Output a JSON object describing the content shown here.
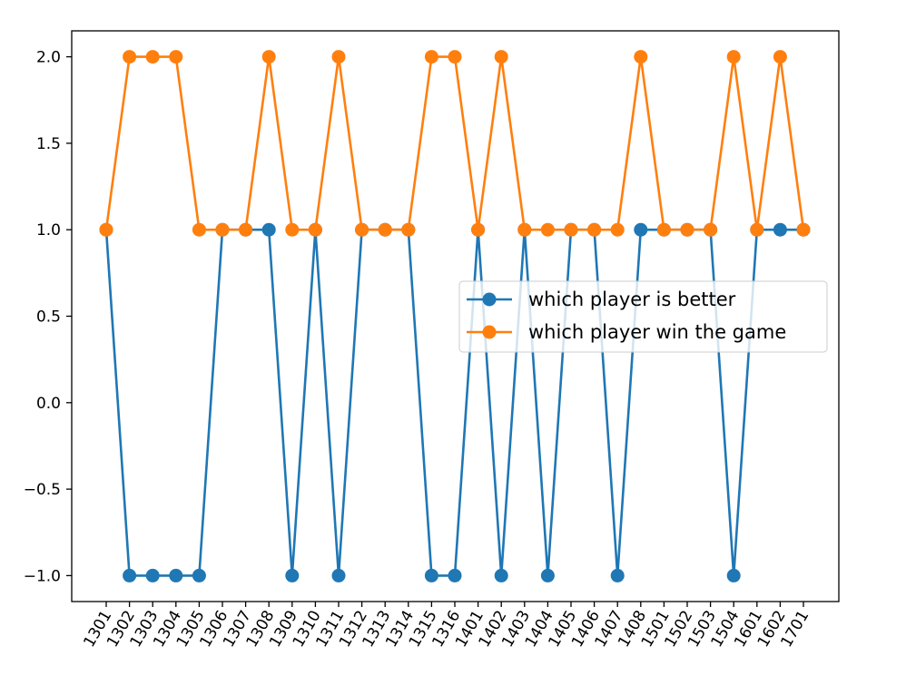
{
  "chart_data": {
    "type": "line",
    "x": [
      "1301",
      "1302",
      "1303",
      "1304",
      "1305",
      "1306",
      "1307",
      "1308",
      "1309",
      "1310",
      "1311",
      "1312",
      "1313",
      "1314",
      "1315",
      "1316",
      "1401",
      "1402",
      "1403",
      "1404",
      "1405",
      "1406",
      "1407",
      "1408",
      "1501",
      "1502",
      "1503",
      "1504",
      "1601",
      "1602",
      "1701"
    ],
    "series": [
      {
        "name": "which player is better",
        "color": "#1f77b4",
        "values": [
          1,
          -1,
          -1,
          -1,
          -1,
          1,
          1,
          1,
          -1,
          1,
          -1,
          1,
          1,
          1,
          -1,
          -1,
          1,
          -1,
          1,
          -1,
          1,
          1,
          -1,
          1,
          1,
          1,
          1,
          -1,
          1,
          1,
          1
        ]
      },
      {
        "name": "which player win the game",
        "color": "#ff7f0e",
        "values": [
          1,
          2,
          2,
          2,
          1,
          1,
          1,
          2,
          1,
          1,
          2,
          1,
          1,
          1,
          2,
          2,
          1,
          2,
          1,
          1,
          1,
          1,
          1,
          2,
          1,
          1,
          1,
          2,
          1,
          2,
          1
        ]
      }
    ],
    "ylim": [
      -1.15,
      2.15
    ],
    "yticks": [
      -1.0,
      -0.5,
      0.0,
      0.5,
      1.0,
      1.5,
      2.0
    ],
    "ytick_labels": [
      "−1.0",
      "−0.5",
      "0.0",
      "0.5",
      "1.0",
      "1.5",
      "2.0"
    ],
    "grid": false,
    "legend": "center-right"
  }
}
